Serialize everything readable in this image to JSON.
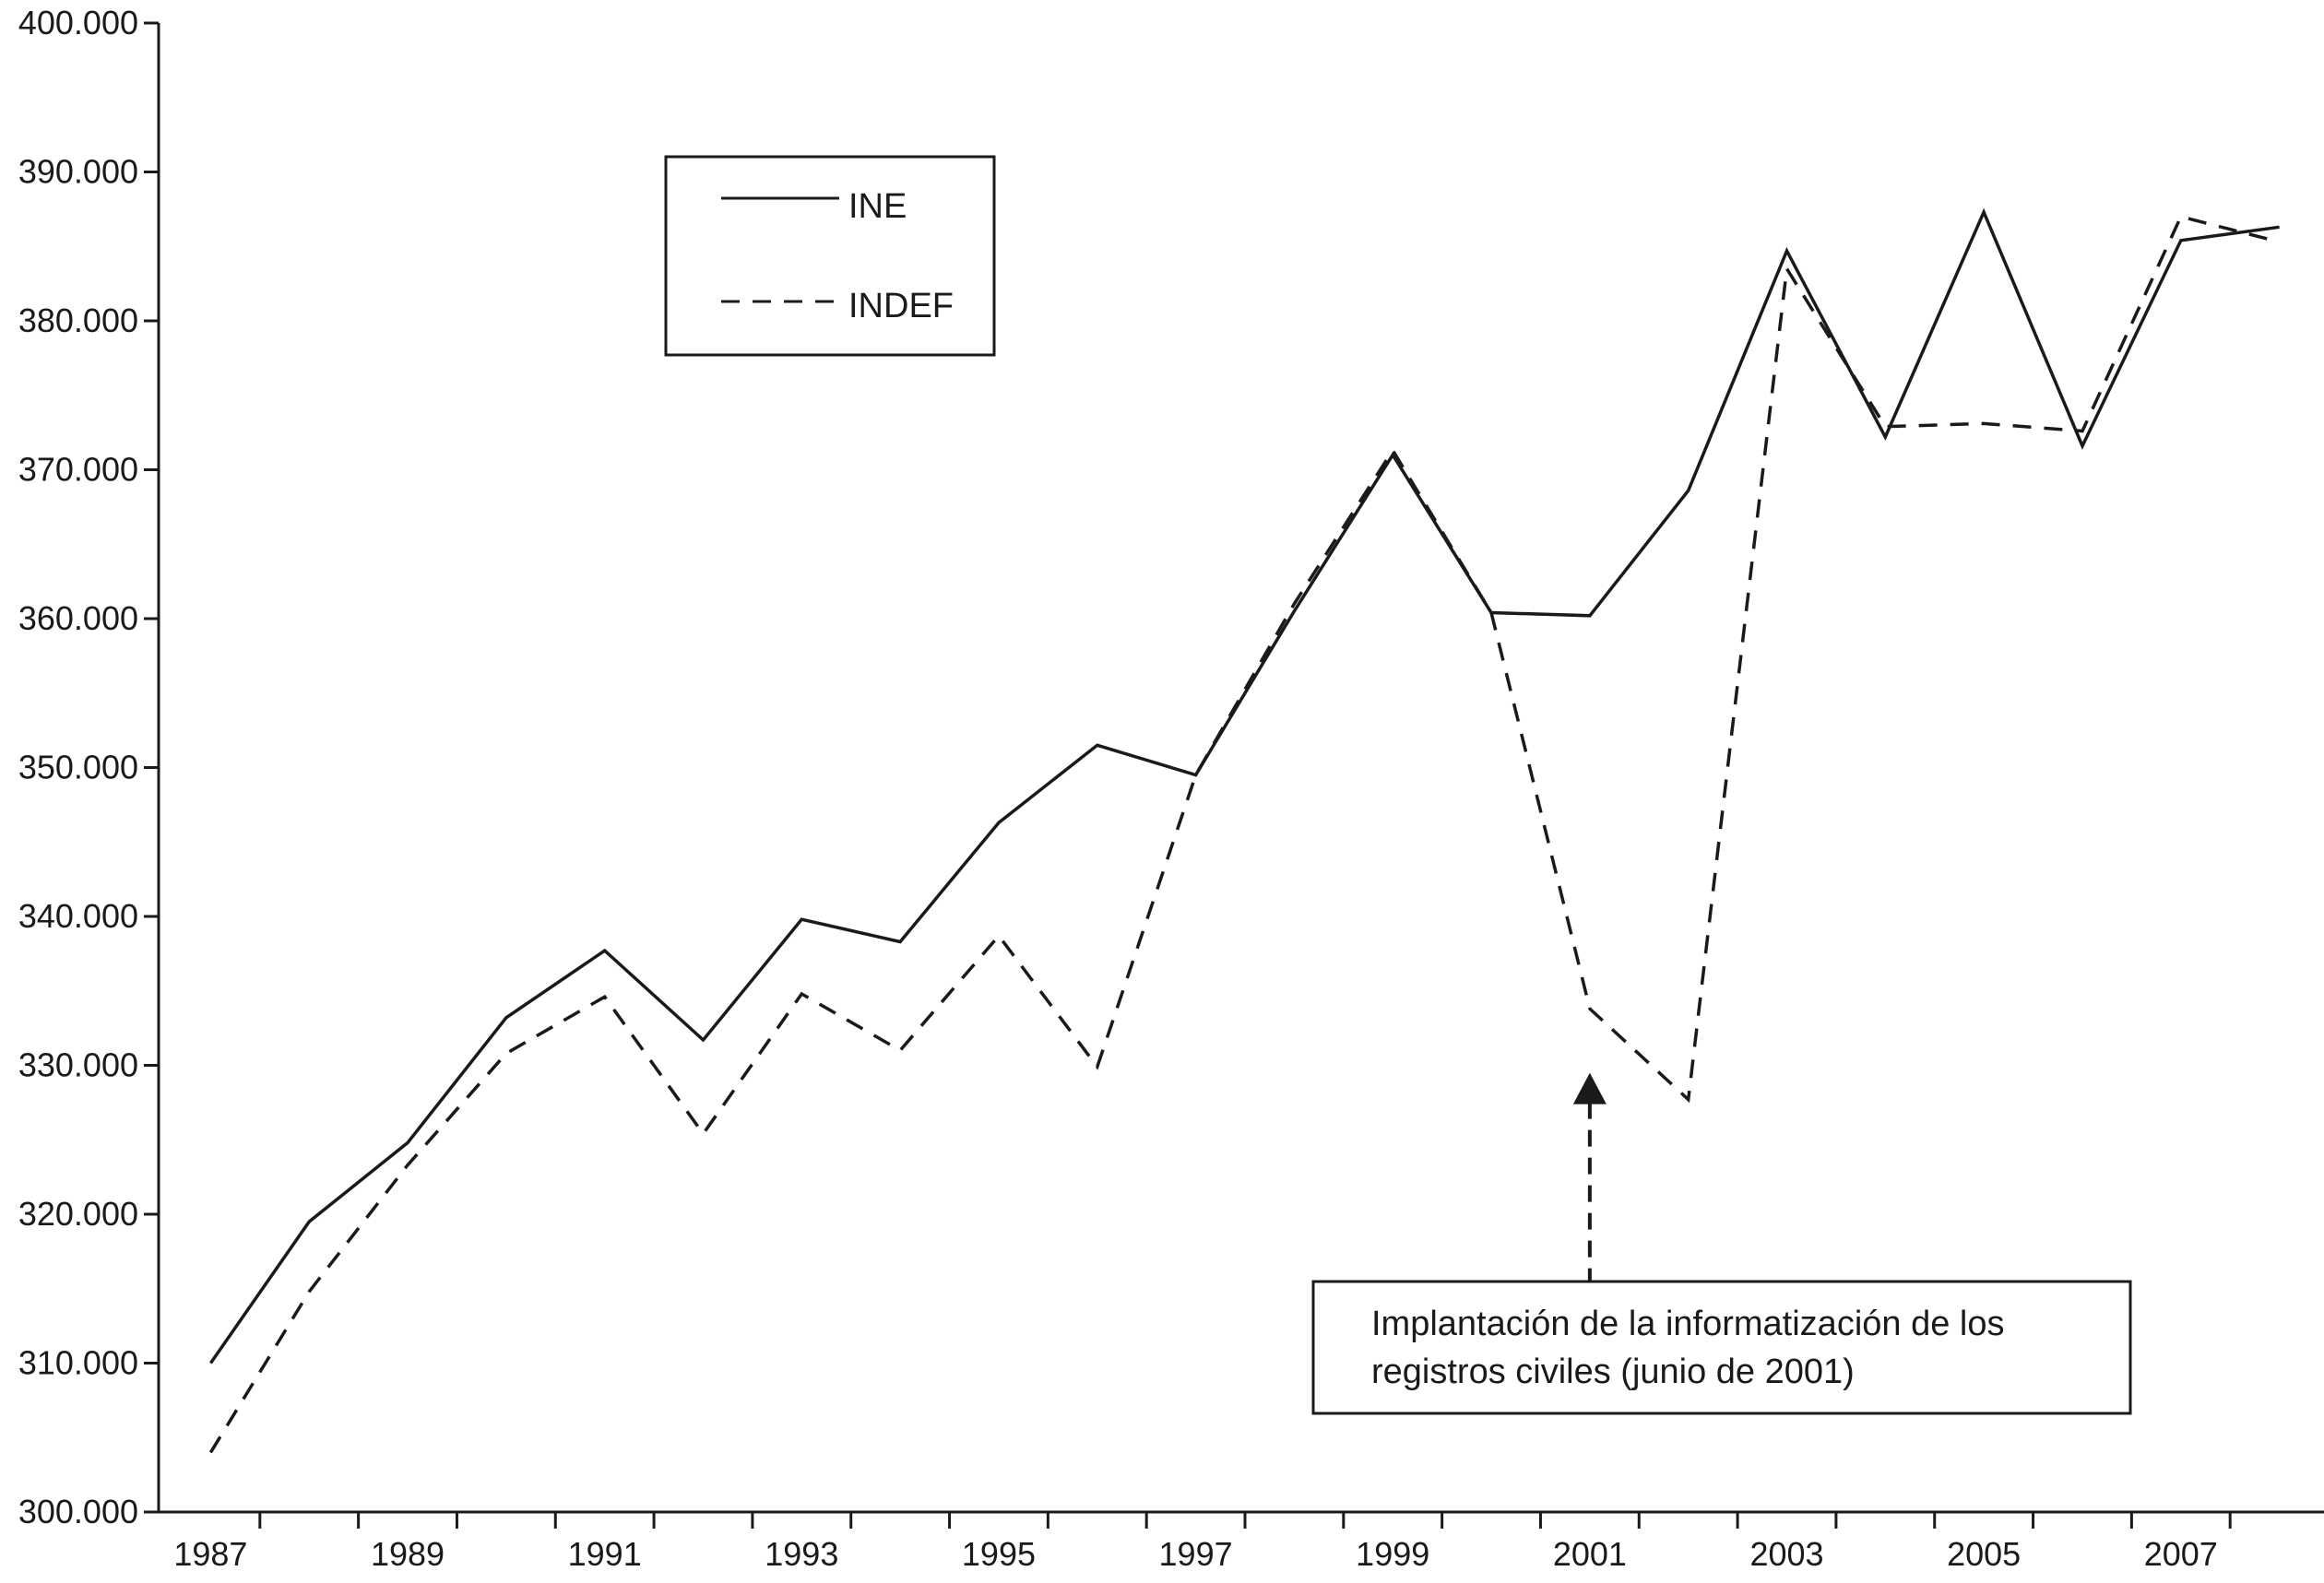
{
  "chart_data": {
    "type": "line",
    "x": [
      1987,
      1988,
      1989,
      1990,
      1991,
      1992,
      1993,
      1994,
      1995,
      1996,
      1997,
      1998,
      1999,
      2000,
      2001,
      2002,
      2003,
      2004,
      2005,
      2006,
      2007,
      2008
    ],
    "xtick_labels": [
      "1987",
      "1989",
      "1991",
      "1993",
      "1995",
      "1997",
      "1999",
      "2001",
      "2003",
      "2005",
      "2007"
    ],
    "ytick_labels": [
      "300.000",
      "310.000",
      "320.000",
      "330.000",
      "340.000",
      "350.000",
      "360.000",
      "370.000",
      "380.000",
      "390.000",
      "400.000"
    ],
    "ylim": [
      300000,
      400000
    ],
    "xlim": [
      1986.5,
      2008.5
    ],
    "series": [
      {
        "name": "INE",
        "style": "solid",
        "values": [
          310000,
          319500,
          324800,
          333200,
          337700,
          331700,
          339800,
          338300,
          346300,
          351500,
          349500,
          360500,
          371000,
          360400,
          360200,
          368600,
          384700,
          372200,
          387300,
          371600,
          385400,
          386300
        ]
      },
      {
        "name": "INDEF",
        "style": "dashed",
        "values": [
          304000,
          314800,
          323300,
          330800,
          334600,
          325400,
          334800,
          331000,
          338700,
          329900,
          349500,
          361000,
          371300,
          360400,
          333800,
          327700,
          383500,
          372900,
          373100,
          372600,
          387000,
          385300
        ]
      }
    ],
    "legend": {
      "position": "top-left"
    },
    "grid": false,
    "annotation": {
      "text_lines": [
        "Implantación de la informatización de los",
        "registros civiles (junio de 2001)"
      ],
      "target_x": 2001,
      "target_y": 329500
    }
  },
  "colors": {
    "line": "#1a1a1a",
    "background": "#ffffff"
  }
}
